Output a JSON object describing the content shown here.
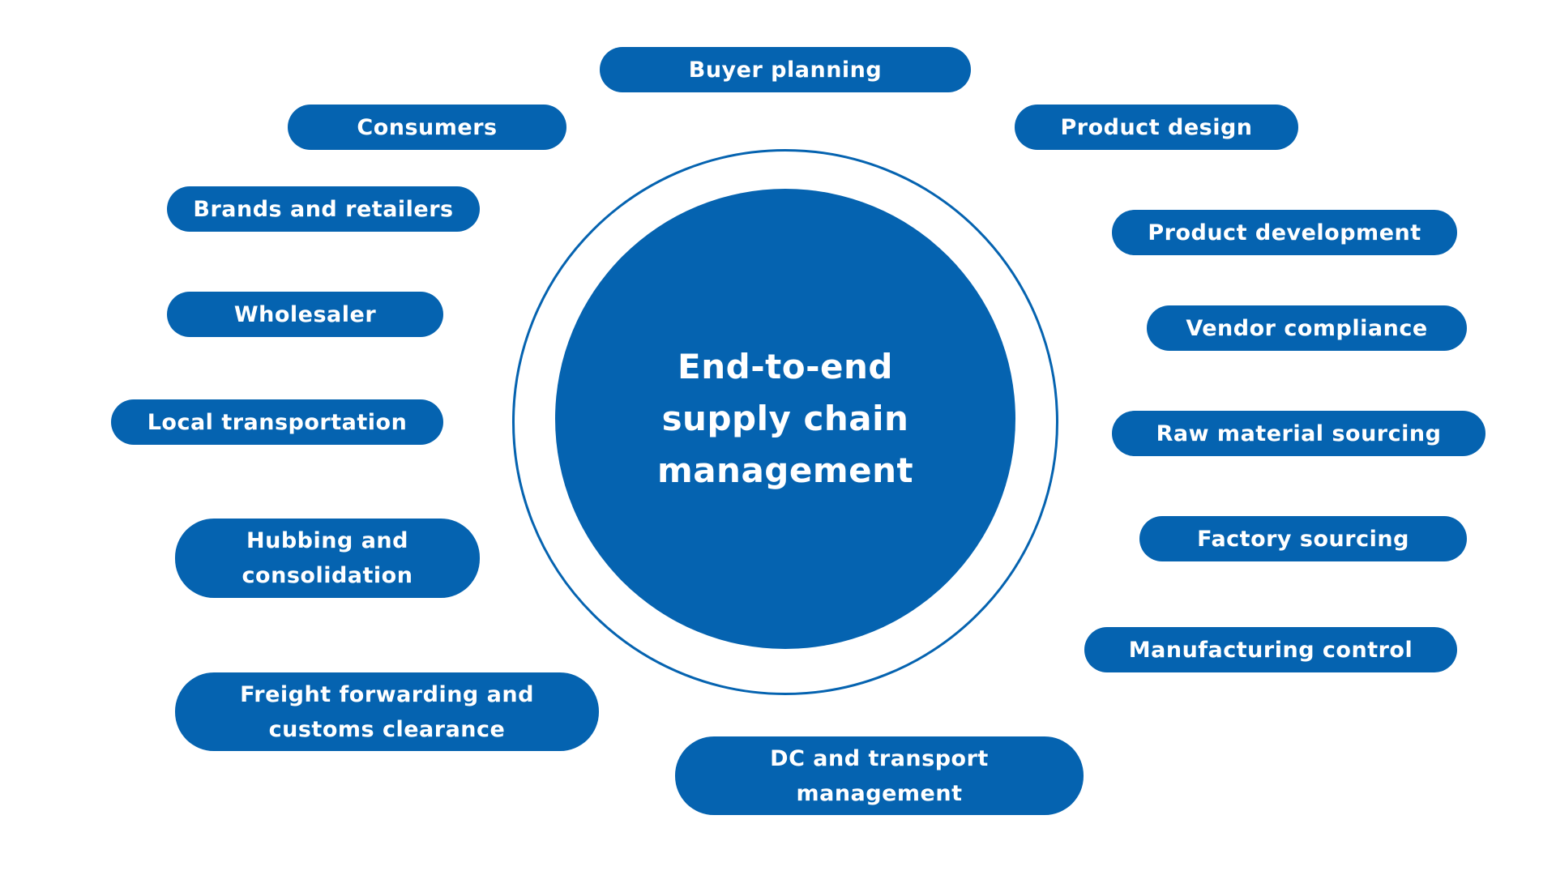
{
  "colors": {
    "primary": "#0563b0",
    "text": "#ffffff",
    "background": "#ffffff"
  },
  "center": {
    "title": "End-to-end supply chain management"
  },
  "nodes": {
    "buyer_planning": "Buyer planning",
    "product_design": "Product design",
    "product_development": "Product development",
    "vendor_compliance": "Vendor compliance",
    "raw_material_sourcing": "Raw material sourcing",
    "factory_sourcing": "Factory sourcing",
    "manufacturing_control": "Manufacturing control",
    "dc_transport_management": "DC and transport management",
    "freight_forwarding": "Freight forwarding and customs clearance",
    "hubbing_consolidation": "Hubbing and consolidation",
    "local_transportation": "Local transportation",
    "wholesaler": "Wholesaler",
    "brands_retailers": "Brands and retailers",
    "consumers": "Consumers"
  }
}
